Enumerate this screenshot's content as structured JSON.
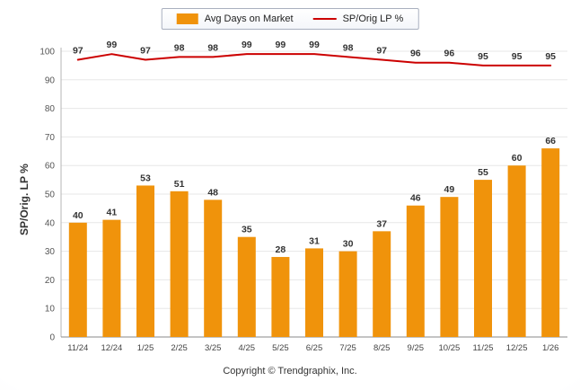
{
  "chart_data": {
    "type": "bar",
    "categories": [
      "11/24",
      "12/24",
      "1/25",
      "2/25",
      "3/25",
      "4/25",
      "5/25",
      "6/25",
      "7/25",
      "8/25",
      "9/25",
      "10/25",
      "11/25",
      "12/25",
      "1/26"
    ],
    "series": [
      {
        "name": "Avg Days on Market",
        "type": "bar",
        "color": "#F0930B",
        "values": [
          40,
          41,
          53,
          51,
          48,
          35,
          28,
          31,
          30,
          37,
          46,
          49,
          55,
          60,
          66
        ]
      },
      {
        "name": "SP/Orig LP %",
        "type": "line",
        "color": "#CC0000",
        "values": [
          97,
          99,
          97,
          98,
          98,
          99,
          99,
          99,
          98,
          97,
          96,
          96,
          95,
          95,
          95
        ]
      }
    ],
    "title": "",
    "xlabel": "",
    "ylabel": "SP/Orig. LP %",
    "ylim": [
      0,
      100
    ],
    "ytick_step": 10,
    "grid": true,
    "legend_position": "top"
  },
  "footer": {
    "copyright": "Copyright © Trendgraphix, Inc."
  }
}
